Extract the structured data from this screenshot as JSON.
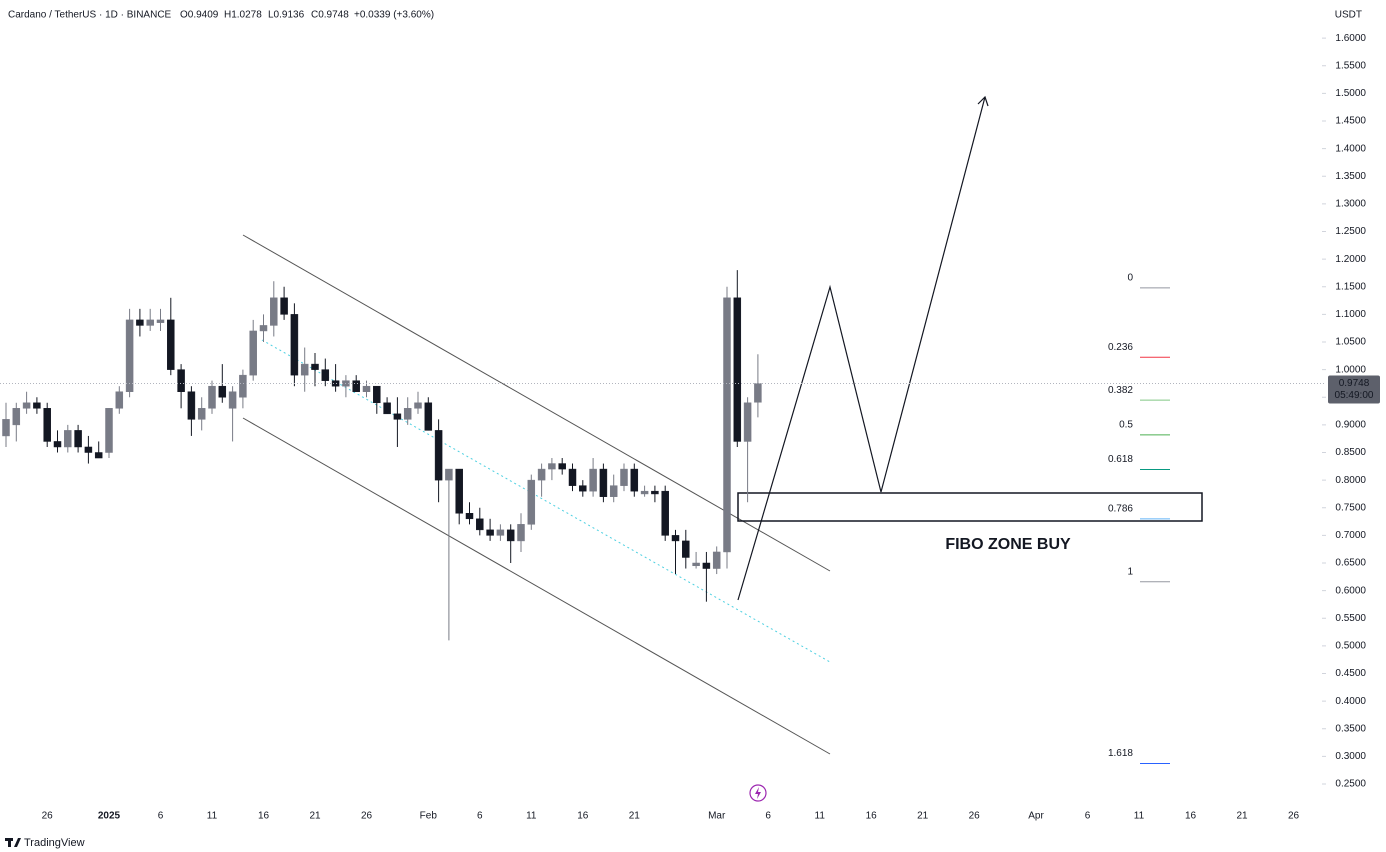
{
  "chart_data": {
    "type": "candlestick",
    "title": "Cardano / TetherUS · 1D · BINANCE",
    "ohlc_text": [
      "O0.9409",
      "H1.0278",
      "L0.9136",
      "C0.9748"
    ],
    "change": "+0.0339 (+3.60%)",
    "currency": "USDT",
    "last_price": 0.9748,
    "countdown": "05:49:00",
    "annotation": "FIBO ZONE BUY",
    "watermark": "TradingView",
    "grid": false,
    "colors": {
      "up": "#787b86",
      "down": "#131722",
      "tag": "#5d606b"
    },
    "categories": [
      null,
      null,
      null,
      null,
      "26",
      null,
      null,
      null,
      null,
      null,
      "2025",
      null,
      null,
      null,
      null,
      "6",
      null,
      null,
      null,
      null,
      "11",
      null,
      null,
      null,
      null,
      "16",
      null,
      null,
      null,
      null,
      "21",
      null,
      null,
      null,
      null,
      "26",
      null,
      null,
      null,
      null,
      null,
      "Feb",
      null,
      null,
      null,
      null,
      "6",
      null,
      null,
      null,
      null,
      "11",
      null,
      null,
      null,
      null,
      "16",
      null,
      null,
      null,
      null,
      "21",
      null,
      null,
      null,
      null,
      null,
      null,
      null,
      "Mar",
      null,
      null,
      null,
      null,
      "6",
      null,
      null,
      null,
      null,
      "11",
      null,
      null,
      null,
      null,
      "16",
      null,
      null,
      null,
      null,
      "21",
      null,
      null,
      null,
      null,
      "26",
      null,
      null,
      null,
      null,
      null,
      "Apr",
      null,
      null,
      null,
      null,
      "6",
      null,
      null,
      null,
      null,
      "11",
      null,
      null,
      null,
      null,
      "16",
      null,
      null,
      null,
      null,
      "21",
      null,
      null,
      null,
      null,
      "26",
      null,
      null
    ],
    "open": [
      0.88,
      0.9,
      0.93,
      0.94,
      0.93,
      0.87,
      0.86,
      0.89,
      0.86,
      0.85,
      0.85,
      0.93,
      0.96,
      1.09,
      1.08,
      1.085,
      1.09,
      1.0,
      0.96,
      0.91,
      0.93,
      0.97,
      0.93,
      0.95,
      0.99,
      1.07,
      1.08,
      1.13,
      1.1,
      0.99,
      1.01,
      1.0,
      0.98,
      0.97,
      0.98,
      0.96,
      0.97,
      0.94,
      0.92,
      0.91,
      0.93,
      0.94,
      0.89,
      0.8,
      0.82,
      0.74,
      0.73,
      0.71,
      0.7,
      0.71,
      0.69,
      0.72,
      0.8,
      0.82,
      0.83,
      0.82,
      0.79,
      0.78,
      0.82,
      0.77,
      0.79,
      0.82,
      0.775,
      0.78,
      0.78,
      0.7,
      0.69,
      0.645,
      0.65,
      0.64,
      0.67,
      1.13,
      0.87,
      0.9409,
      null,
      null,
      null,
      null,
      null,
      null,
      null,
      null,
      null,
      null,
      null,
      null,
      null,
      null,
      null,
      null,
      null,
      null,
      null,
      null,
      null,
      null,
      null,
      null,
      null,
      null,
      null,
      null,
      null,
      null,
      null,
      null,
      null,
      null,
      null,
      null,
      null,
      null,
      null,
      null,
      null,
      null,
      null,
      null,
      null,
      null,
      null,
      null,
      null,
      null,
      null,
      null,
      null,
      null
    ],
    "high": [
      0.94,
      0.94,
      0.96,
      0.95,
      0.94,
      0.89,
      0.9,
      0.9,
      0.88,
      0.87,
      0.93,
      0.97,
      1.11,
      1.11,
      1.11,
      1.11,
      1.13,
      1.01,
      0.97,
      0.95,
      0.98,
      1.01,
      0.97,
      1.0,
      1.09,
      1.1,
      1.16,
      1.15,
      1.12,
      1.04,
      1.03,
      1.02,
      1.01,
      0.99,
      0.99,
      0.98,
      0.97,
      0.95,
      0.95,
      0.95,
      0.96,
      0.95,
      0.91,
      0.82,
      0.82,
      0.76,
      0.75,
      0.73,
      0.72,
      0.72,
      0.74,
      0.81,
      0.83,
      0.84,
      0.84,
      0.83,
      0.8,
      0.84,
      0.83,
      0.81,
      0.83,
      0.83,
      0.79,
      0.79,
      0.79,
      0.71,
      0.71,
      0.67,
      0.67,
      0.68,
      1.15,
      1.18,
      0.95,
      1.0278,
      null,
      null,
      null,
      null,
      null,
      null,
      null,
      null,
      null,
      null,
      null,
      null,
      null,
      null,
      null,
      null,
      null,
      null,
      null,
      null,
      null,
      null,
      null,
      null,
      null,
      null,
      null,
      null,
      null,
      null,
      null,
      null,
      null,
      null,
      null,
      null,
      null,
      null,
      null,
      null,
      null,
      null,
      null,
      null,
      null,
      null,
      null,
      null,
      null,
      null,
      null,
      null,
      null,
      null
    ],
    "low": [
      0.86,
      0.87,
      0.92,
      0.92,
      0.86,
      0.85,
      0.85,
      0.85,
      0.83,
      0.84,
      0.84,
      0.92,
      0.95,
      1.06,
      1.07,
      1.07,
      0.99,
      0.93,
      0.88,
      0.89,
      0.92,
      0.94,
      0.87,
      0.93,
      0.98,
      1.05,
      1.06,
      1.09,
      0.97,
      0.96,
      0.97,
      0.97,
      0.96,
      0.95,
      0.96,
      0.95,
      0.92,
      0.92,
      0.86,
      0.9,
      0.92,
      0.89,
      0.76,
      0.51,
      0.72,
      0.72,
      0.7,
      0.69,
      0.69,
      0.65,
      0.67,
      0.71,
      0.77,
      0.8,
      0.81,
      0.78,
      0.77,
      0.77,
      0.76,
      0.76,
      0.78,
      0.77,
      0.77,
      0.76,
      0.69,
      0.63,
      0.64,
      0.64,
      0.58,
      0.63,
      0.64,
      0.86,
      0.76,
      0.9136,
      null,
      null,
      null,
      null,
      null,
      null,
      null,
      null,
      null,
      null,
      null,
      null,
      null,
      null,
      null,
      null,
      null,
      null,
      null,
      null,
      null,
      null,
      null,
      null,
      null,
      null,
      null,
      null,
      null,
      null,
      null,
      null,
      null,
      null,
      null,
      null,
      null,
      null,
      null,
      null,
      null,
      null,
      null,
      null,
      null,
      null,
      null,
      null,
      null,
      null,
      null,
      null,
      null,
      null
    ],
    "close": [
      0.91,
      0.93,
      0.94,
      0.93,
      0.87,
      0.86,
      0.89,
      0.86,
      0.85,
      0.84,
      0.93,
      0.96,
      1.09,
      1.08,
      1.09,
      1.09,
      1.0,
      0.96,
      0.91,
      0.93,
      0.97,
      0.95,
      0.96,
      0.99,
      1.07,
      1.08,
      1.13,
      1.1,
      0.99,
      1.01,
      1.0,
      0.98,
      0.97,
      0.98,
      0.96,
      0.97,
      0.94,
      0.92,
      0.91,
      0.93,
      0.94,
      0.89,
      0.8,
      0.82,
      0.74,
      0.73,
      0.71,
      0.7,
      0.71,
      0.69,
      0.72,
      0.8,
      0.82,
      0.83,
      0.82,
      0.79,
      0.78,
      0.82,
      0.77,
      0.79,
      0.82,
      0.78,
      0.78,
      0.775,
      0.7,
      0.69,
      0.66,
      0.65,
      0.64,
      0.67,
      1.13,
      0.87,
      0.94,
      0.9748,
      null,
      null,
      null,
      null,
      null,
      null,
      null,
      null,
      null,
      null,
      null,
      null,
      null,
      null,
      null,
      null,
      null,
      null,
      null,
      null,
      null,
      null,
      null,
      null,
      null,
      null,
      null,
      null,
      null,
      null,
      null,
      null,
      null,
      null,
      null,
      null,
      null,
      null,
      null,
      null,
      null,
      null,
      null,
      null,
      null,
      null,
      null,
      null,
      null,
      null,
      null,
      null,
      null,
      null
    ],
    "ylim": [
      0.212,
      1.669
    ],
    "yticks": [
      {
        "value": 1.6,
        "label": "1.6000"
      },
      {
        "value": 1.55,
        "label": "1.5500"
      },
      {
        "value": 1.5,
        "label": "1.5000"
      },
      {
        "value": 1.45,
        "label": "1.4500"
      },
      {
        "value": 1.4,
        "label": "1.4000"
      },
      {
        "value": 1.35,
        "label": "1.3500"
      },
      {
        "value": 1.3,
        "label": "1.3000"
      },
      {
        "value": 1.25,
        "label": "1.2500"
      },
      {
        "value": 1.2,
        "label": "1.2000"
      },
      {
        "value": 1.15,
        "label": "1.1500"
      },
      {
        "value": 1.1,
        "label": "1.1000"
      },
      {
        "value": 1.05,
        "label": "1.0500"
      },
      {
        "value": 1.0,
        "label": "1.0000"
      },
      {
        "value": 0.95,
        "label": "0.9500"
      },
      {
        "value": 0.9,
        "label": "0.9000"
      },
      {
        "value": 0.85,
        "label": "0.8500"
      },
      {
        "value": 0.8,
        "label": "0.8000"
      },
      {
        "value": 0.75,
        "label": "0.7500"
      },
      {
        "value": 0.7,
        "label": "0.7000"
      },
      {
        "value": 0.65,
        "label": "0.6500"
      },
      {
        "value": 0.6,
        "label": "0.6000"
      },
      {
        "value": 0.55,
        "label": "0.5500"
      },
      {
        "value": 0.5,
        "label": "0.5000"
      },
      {
        "value": 0.45,
        "label": "0.4500"
      },
      {
        "value": 0.4,
        "label": "0.4000"
      },
      {
        "value": 0.35,
        "label": "0.3500"
      },
      {
        "value": 0.3,
        "label": "0.3000"
      },
      {
        "value": 0.25,
        "label": "0.2500"
      }
    ],
    "fibonacci": {
      "high": 1.148,
      "low": 0.616,
      "levels": [
        0,
        0.236,
        0.382,
        0.5,
        0.618,
        0.786,
        1,
        1.618
      ],
      "colors": [
        "#9598a1",
        "#f23645",
        "#81c784",
        "#4caf50",
        "#089981",
        "#64b5f6",
        "#9598a1",
        "#2962ff"
      ]
    }
  }
}
